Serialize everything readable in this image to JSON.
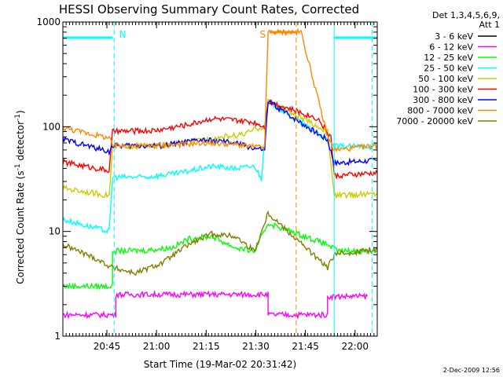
{
  "chart_data": {
    "type": "line",
    "title": "HESSI Observing Summary Count Rates, Corrected",
    "ylabel_main": "Corrected Count Rate (s",
    "ylabel_sup1": "-1",
    "ylabel_mid": " detector",
    "ylabel_sup2": "-1",
    "ylabel_end": ")",
    "xlabel": "Start Time (19-Mar-02 20:31:42)",
    "yscale": "log",
    "ylim": [
      1,
      1000
    ],
    "xlim_minutes": [
      0,
      95
    ],
    "x_ticks": [
      {
        "label": "20:45",
        "minute": 13.3
      },
      {
        "label": "21:00",
        "minute": 28.3
      },
      {
        "label": "21:15",
        "minute": 43.3
      },
      {
        "label": "21:30",
        "minute": 58.3
      },
      {
        "label": "21:45",
        "minute": 73.3
      },
      {
        "label": "22:00",
        "minute": 88.3
      }
    ],
    "y_ticks": [
      {
        "label": "1",
        "value": 1
      },
      {
        "label": "10",
        "value": 10
      },
      {
        "label": "100",
        "value": 100
      },
      {
        "label": "1000",
        "value": 1000
      }
    ],
    "legend_header": [
      "Det 1,3,4,5,6,9,",
      "Att 1"
    ],
    "legend_position": "right",
    "series": [
      {
        "name": "3 - 6 keV",
        "color": "#000000",
        "points": []
      },
      {
        "name": "6 - 12 keV",
        "color": "#ff00ff",
        "points": [
          [
            0,
            1.6
          ],
          [
            16,
            1.6
          ],
          [
            16,
            2.5
          ],
          [
            62,
            2.5
          ],
          [
            62,
            1.6
          ],
          [
            80,
            1.6
          ],
          [
            80,
            2.4
          ],
          [
            92,
            2.4
          ]
        ]
      },
      {
        "name": "12 - 25 keV",
        "color": "#00ff00",
        "points": [
          [
            0,
            3.0
          ],
          [
            15,
            3.0
          ],
          [
            15,
            6.5
          ],
          [
            25,
            6.6
          ],
          [
            33,
            7
          ],
          [
            38,
            8.5
          ],
          [
            45,
            9
          ],
          [
            52,
            7
          ],
          [
            58,
            6.5
          ],
          [
            62,
            12
          ],
          [
            80,
            7.5
          ],
          [
            83,
            6.5
          ],
          [
            88,
            6.5
          ],
          [
            95,
            6.5
          ]
        ]
      },
      {
        "name": "25 - 50 keV",
        "color": "#00ffff",
        "points": [
          [
            0,
            13
          ],
          [
            14,
            10
          ],
          [
            15,
            33
          ],
          [
            25,
            33
          ],
          [
            35,
            36
          ],
          [
            45,
            42
          ],
          [
            52,
            40
          ],
          [
            58,
            42
          ],
          [
            60,
            32
          ],
          [
            62,
            175
          ],
          [
            80,
            75
          ],
          [
            82,
            65
          ],
          [
            90,
            65
          ],
          [
            95,
            66
          ]
        ]
      },
      {
        "name": "50 - 100 keV",
        "color": "#cccc00",
        "points": [
          [
            0,
            26
          ],
          [
            14,
            22
          ],
          [
            15,
            64
          ],
          [
            30,
            66
          ],
          [
            42,
            75
          ],
          [
            55,
            85
          ],
          [
            58,
            95
          ],
          [
            61,
            100
          ],
          [
            62,
            175
          ],
          [
            80,
            90
          ],
          [
            82,
            22
          ],
          [
            95,
            23
          ]
        ]
      },
      {
        "name": "100 - 300 keV",
        "color": "#ff0000",
        "points": [
          [
            0,
            46
          ],
          [
            14,
            38
          ],
          [
            15,
            90
          ],
          [
            28,
            92
          ],
          [
            38,
            105
          ],
          [
            45,
            120
          ],
          [
            52,
            115
          ],
          [
            58,
            110
          ],
          [
            61,
            100
          ],
          [
            62,
            175
          ],
          [
            77,
            120
          ],
          [
            81,
            80
          ],
          [
            82,
            34
          ],
          [
            95,
            36
          ]
        ]
      },
      {
        "name": "300 - 800 keV",
        "color": "#0000ff",
        "points": [
          [
            0,
            76
          ],
          [
            14,
            58
          ],
          [
            15,
            66
          ],
          [
            30,
            66
          ],
          [
            42,
            75
          ],
          [
            52,
            70
          ],
          [
            58,
            62
          ],
          [
            61,
            60
          ],
          [
            62,
            175
          ],
          [
            80,
            75
          ],
          [
            82,
            45
          ],
          [
            95,
            48
          ]
        ]
      },
      {
        "name": "800 - 7000 keV",
        "color": "#ff8800",
        "points": [
          [
            0,
            98
          ],
          [
            14,
            78
          ],
          [
            15,
            66
          ],
          [
            30,
            66
          ],
          [
            42,
            70
          ],
          [
            52,
            68
          ],
          [
            58,
            64
          ],
          [
            61,
            64
          ],
          [
            62,
            800
          ],
          [
            72,
            800
          ],
          [
            80,
            80
          ],
          [
            82,
            60
          ],
          [
            95,
            66
          ]
        ]
      },
      {
        "name": "7000 - 20000 keV",
        "color": "#808000",
        "points": [
          [
            0,
            7.5
          ],
          [
            10,
            5.5
          ],
          [
            15,
            4.5
          ],
          [
            22,
            4
          ],
          [
            30,
            5
          ],
          [
            38,
            7.5
          ],
          [
            45,
            9.5
          ],
          [
            52,
            9
          ],
          [
            58,
            6.5
          ],
          [
            62,
            15
          ],
          [
            80,
            4.5
          ],
          [
            82,
            6
          ],
          [
            95,
            6.8
          ]
        ]
      }
    ],
    "annotations": [
      {
        "text": "N",
        "color": "#00ffff"
      },
      {
        "text": "S",
        "color": "#ff8800"
      }
    ],
    "footer": "2-Dec-2009 12:56"
  }
}
